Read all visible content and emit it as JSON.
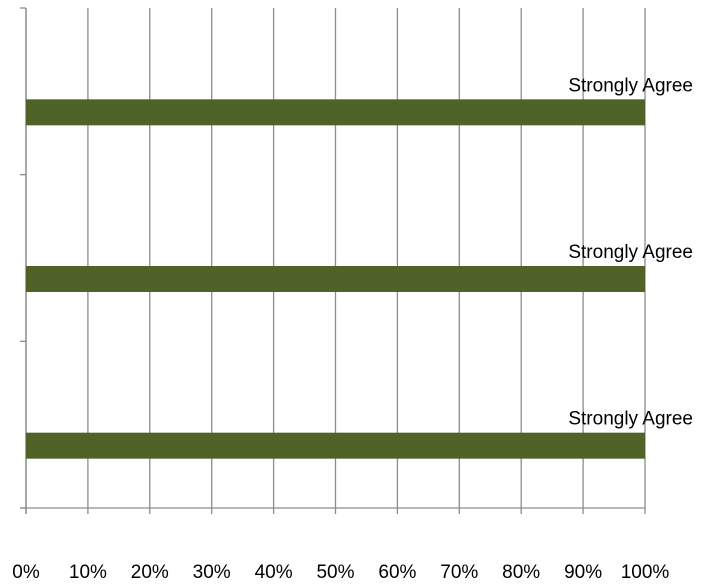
{
  "chart_data": {
    "type": "bar",
    "orientation": "horizontal",
    "stacked": true,
    "title": "",
    "xlabel": "",
    "ylabel": "",
    "xlim": [
      0,
      100
    ],
    "x_ticks": [
      "0%",
      "10%",
      "20%",
      "30%",
      "40%",
      "50%",
      "60%",
      "70%",
      "80%",
      "90%",
      "100%"
    ],
    "grid": "vertical",
    "legend": "none",
    "bar_color": "#4f6228",
    "categories": [
      "",
      "",
      ""
    ],
    "series": [
      {
        "values": [
          100,
          100,
          100
        ],
        "data_labels": [
          "Strongly Agree",
          "Strongly Agree",
          "Strongly Agree"
        ]
      }
    ]
  }
}
